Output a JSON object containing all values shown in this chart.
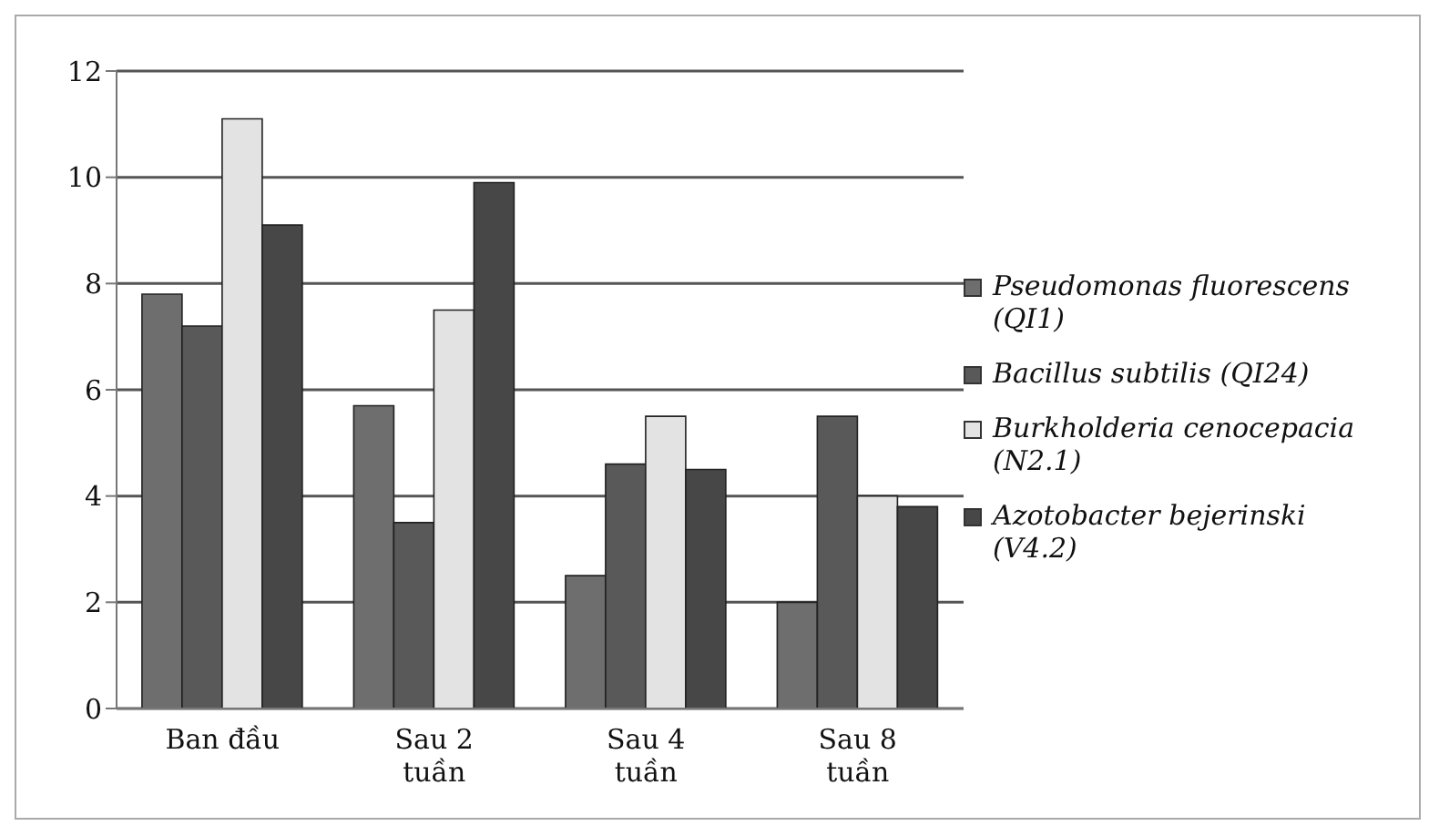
{
  "chart_data": {
    "type": "bar",
    "categories": [
      "Ban đầu",
      "Sau 2 tuần",
      "Sau 4 tuần",
      "Sau 8 tuần"
    ],
    "series": [
      {
        "name": "Pseudomonas fluorescens  (QI1)",
        "color": "#6e6e6e",
        "values": [
          7.8,
          5.7,
          2.5,
          2.0
        ]
      },
      {
        "name": "Bacillus subtilis (QI24)",
        "color": "#595959",
        "values": [
          7.2,
          3.5,
          4.6,
          5.5
        ]
      },
      {
        "name": "Burkholderia cenocepacia (N2.1)",
        "color": "#e3e3e3",
        "values": [
          11.1,
          7.5,
          5.5,
          4.0
        ]
      },
      {
        "name": "Azotobacter bejerinski (V4.2)",
        "color": "#474747",
        "values": [
          9.1,
          9.9,
          4.5,
          3.8
        ]
      }
    ],
    "ylim": [
      0,
      12
    ],
    "yticks": [
      0,
      2,
      4,
      6,
      8,
      10,
      12
    ],
    "grid": "y",
    "legend": "right"
  }
}
